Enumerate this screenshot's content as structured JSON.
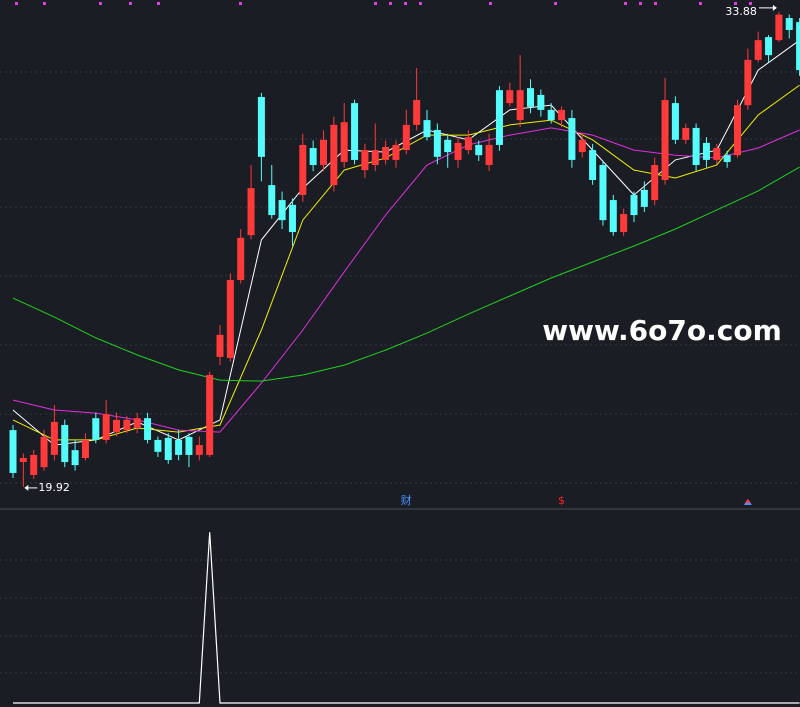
{
  "chart_data": [
    {
      "type": "candlestick",
      "up_color": "#ff3a3a",
      "down_color": "#54fcfc",
      "ylim": [
        19.3,
        34.23
      ],
      "open": [
        21.59,
        20.65,
        20.27,
        20.5,
        20.86,
        21.74,
        21.0,
        20.77,
        21.94,
        21.3,
        21.53,
        21.59,
        21.65,
        21.94,
        21.3,
        21.36,
        21.3,
        21.39,
        20.86,
        20.86,
        23.74,
        23.71,
        26.0,
        27.32,
        31.38,
        28.79,
        28.35,
        28.21,
        28.5,
        29.88,
        29.38,
        28.79,
        29.47,
        31.2,
        29.23,
        29.38,
        29.53,
        29.53,
        29.82,
        30.56,
        30.7,
        30.41,
        30.12,
        29.53,
        29.82,
        29.97,
        29.38,
        31.58,
        31.2,
        30.7,
        31.64,
        31.44,
        31.0,
        30.7,
        30.76,
        29.76,
        29.82,
        29.38,
        28.35,
        27.41,
        28.5,
        28.65,
        28.35,
        28.94,
        31.2,
        30.12,
        30.47,
        30.03,
        29.53,
        29.67,
        29.67,
        31.14,
        32.47,
        33.14,
        33.05,
        33.7,
        33.58
      ],
      "high": [
        21.74,
        20.9,
        21.0,
        21.6,
        22.33,
        21.9,
        21.3,
        21.5,
        22.1,
        22.47,
        22.1,
        22.0,
        22.1,
        22.1,
        21.4,
        21.5,
        21.6,
        21.5,
        21.4,
        23.3,
        24.68,
        26.2,
        27.5,
        29.38,
        31.5,
        29.38,
        28.6,
        28.4,
        30.3,
        30.1,
        30.4,
        30.8,
        31.2,
        31.3,
        30.0,
        30.6,
        30.1,
        30.1,
        31.0,
        32.23,
        31.0,
        30.6,
        30.3,
        30.2,
        30.4,
        30.1,
        30.3,
        31.7,
        31.8,
        32.61,
        31.9,
        31.6,
        31.2,
        31.1,
        31.0,
        30.3,
        30.0,
        29.5,
        28.5,
        28.1,
        28.6,
        28.9,
        29.6,
        31.94,
        31.4,
        30.6,
        30.6,
        30.2,
        30.0,
        29.8,
        31.3,
        32.8,
        33.3,
        33.2,
        33.88,
        33.8,
        33.7
      ],
      "low": [
        20.18,
        19.92,
        20.15,
        20.4,
        20.7,
        20.5,
        20.4,
        20.7,
        21.2,
        21.2,
        21.4,
        21.5,
        21.5,
        21.2,
        20.8,
        20.6,
        20.7,
        20.5,
        20.7,
        20.8,
        23.5,
        23.6,
        25.9,
        27.2,
        28.9,
        27.8,
        27.5,
        27.0,
        28.3,
        29.2,
        29.2,
        28.6,
        29.3,
        29.4,
        29.0,
        29.2,
        29.4,
        29.3,
        29.7,
        30.4,
        30.1,
        29.4,
        29.3,
        29.3,
        29.7,
        29.5,
        29.2,
        29.8,
        31.1,
        30.5,
        30.9,
        30.8,
        30.6,
        30.5,
        29.3,
        29.6,
        28.8,
        27.6,
        27.3,
        27.3,
        27.7,
        28.0,
        28.2,
        28.8,
        30.0,
        30.0,
        29.2,
        29.3,
        29.4,
        29.3,
        29.6,
        31.0,
        32.4,
        32.4,
        33.0,
        33.1,
        32.0
      ],
      "close": [
        20.33,
        20.77,
        20.86,
        21.39,
        21.83,
        20.65,
        20.56,
        21.3,
        21.3,
        22.06,
        21.89,
        21.89,
        21.94,
        21.3,
        20.95,
        20.71,
        20.86,
        20.86,
        21.15,
        23.21,
        24.39,
        26.0,
        27.24,
        28.7,
        29.62,
        27.91,
        27.76,
        27.41,
        29.97,
        29.38,
        30.12,
        30.56,
        30.64,
        29.53,
        29.82,
        29.82,
        29.91,
        29.97,
        30.56,
        31.29,
        30.2,
        29.62,
        29.76,
        30.03,
        30.2,
        29.67,
        29.97,
        29.97,
        31.58,
        31.58,
        31.09,
        31.0,
        30.7,
        31.0,
        29.53,
        30.12,
        28.94,
        27.76,
        27.41,
        27.94,
        27.91,
        28.15,
        29.38,
        31.29,
        30.12,
        30.47,
        29.38,
        29.53,
        29.88,
        29.47,
        31.14,
        32.47,
        33.05,
        32.61,
        33.8,
        33.35,
        32.17
      ],
      "series": [
        {
          "color": "#ffffff",
          "x": [
            0,
            4,
            8,
            12,
            16,
            20,
            24,
            28,
            32,
            36,
            40,
            44,
            48,
            52,
            56,
            60,
            64,
            68,
            72,
            76
          ],
          "values": [
            22.18,
            21.15,
            21.3,
            21.83,
            21.3,
            21.89,
            27.18,
            28.7,
            29.82,
            29.76,
            30.41,
            30.12,
            31.0,
            31.14,
            29.82,
            28.5,
            29.53,
            29.82,
            32.17,
            33.05
          ]
        },
        {
          "color": "#f0f000",
          "x": [
            0,
            4,
            8,
            12,
            16,
            20,
            24,
            28,
            32,
            36,
            40,
            44,
            48,
            52,
            56,
            60,
            64,
            68,
            72,
            76
          ],
          "values": [
            21.89,
            21.3,
            21.3,
            21.65,
            21.53,
            21.74,
            24.53,
            27.76,
            29.23,
            29.59,
            30.26,
            30.26,
            30.56,
            30.7,
            30.12,
            29.23,
            29.0,
            29.38,
            30.85,
            31.73
          ]
        },
        {
          "color": "#e030e0",
          "x": [
            0,
            4,
            8,
            12,
            16,
            20,
            24,
            28,
            32,
            36,
            40,
            44,
            48,
            52,
            56,
            60,
            64,
            68,
            72,
            76
          ],
          "values": [
            22.47,
            22.18,
            22.09,
            21.89,
            21.59,
            21.53,
            22.97,
            24.53,
            26.24,
            27.91,
            29.38,
            29.97,
            30.26,
            30.47,
            30.26,
            29.82,
            29.67,
            29.59,
            29.88,
            30.41
          ]
        },
        {
          "color": "#20d020",
          "x": [
            0,
            4,
            8,
            12,
            16,
            20,
            24,
            28,
            32,
            36,
            40,
            44,
            48,
            52,
            56,
            60,
            64,
            68,
            72,
            76
          ],
          "values": [
            25.47,
            24.91,
            24.3,
            23.8,
            23.36,
            23.06,
            23.03,
            23.21,
            23.5,
            23.94,
            24.44,
            25.0,
            25.53,
            26.06,
            26.53,
            27.0,
            27.5,
            28.06,
            28.62,
            29.32
          ]
        }
      ],
      "annotations": [
        {
          "x": 1,
          "value": 19.92,
          "side": "left"
        },
        {
          "x": 74,
          "value": 33.88,
          "side": "right"
        }
      ],
      "events": [
        {
          "x": 38,
          "label": "财",
          "color": "#4a90ff"
        },
        {
          "x": 53,
          "label": "$",
          "color": "#ff2020"
        },
        {
          "x": 71,
          "color": "#4a90ff"
        }
      ],
      "watermark": "www.6o7o.com"
    },
    {
      "type": "line",
      "color": "#ffffff",
      "ylim": [
        0,
        1.1
      ],
      "values": [
        0,
        0,
        0,
        0,
        0,
        0,
        0,
        0,
        0,
        0,
        0,
        0,
        0,
        0,
        0,
        0,
        0,
        0,
        0,
        1,
        0,
        0,
        0,
        0,
        0,
        0,
        0,
        0,
        0,
        0,
        0,
        0,
        0,
        0,
        0,
        0,
        0,
        0,
        0,
        0,
        0,
        0,
        0,
        0,
        0,
        0,
        0,
        0,
        0,
        0,
        0,
        0,
        0,
        0,
        0,
        0,
        0,
        0,
        0,
        0,
        0,
        0,
        0,
        0,
        0,
        0,
        0,
        0,
        0,
        0,
        0,
        0,
        0,
        0,
        0,
        0,
        0
      ]
    }
  ]
}
